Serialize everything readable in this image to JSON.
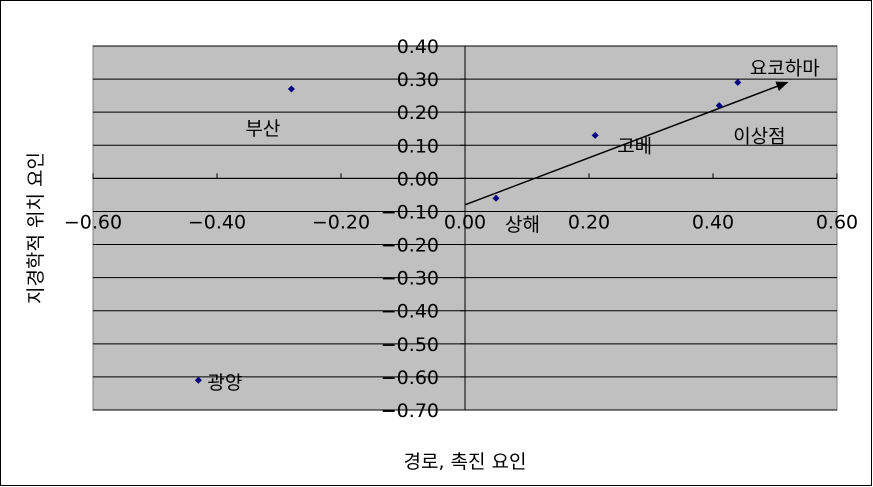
{
  "chart_data": {
    "type": "scatter",
    "title": "",
    "xlabel": "경로, 촉진 요인",
    "ylabel": "지경학적 위치 요인",
    "xlim": [
      -0.6,
      0.6
    ],
    "ylim": [
      -0.7,
      0.4
    ],
    "x_ticks": [
      "-0.60",
      "-0.40",
      "-0.20",
      "0.00",
      "0.20",
      "0.40",
      "0.60"
    ],
    "y_ticks": [
      "0.40",
      "0.30",
      "0.20",
      "0.10",
      "0.00",
      "-0.10",
      "-0.20",
      "-0.30",
      "-0.40",
      "-0.50",
      "-0.60",
      "-0.70"
    ],
    "grid": "horizontal",
    "legend": "none",
    "points": [
      {
        "label": "부산",
        "x": -0.28,
        "y": 0.27
      },
      {
        "label": "광양",
        "x": -0.43,
        "y": -0.61
      },
      {
        "label": "상해",
        "x": 0.05,
        "y": -0.06
      },
      {
        "label": "고베",
        "x": 0.21,
        "y": 0.13
      },
      {
        "label": "이상점",
        "x": 0.41,
        "y": 0.22
      },
      {
        "label": "요코하마",
        "x": 0.44,
        "y": 0.29
      }
    ],
    "arrow": {
      "from": [
        0.0,
        -0.08
      ],
      "to": [
        0.52,
        0.29
      ]
    },
    "colors": {
      "plot_bg": "#c0c0c0",
      "marker": "#000080",
      "grid": "#000000"
    }
  }
}
